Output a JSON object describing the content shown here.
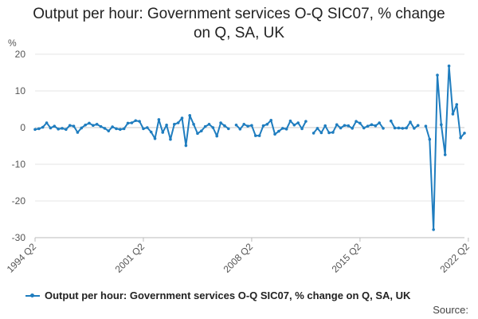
{
  "chart_data": {
    "type": "line",
    "title": "Output per hour: Government services O-Q SIC07, % change on Q, SA, UK",
    "ylabel": "%",
    "ylim": [
      -30,
      20
    ],
    "yticks": [
      20,
      10,
      0,
      -10,
      -20,
      -30
    ],
    "xlabels": [
      "1994 Q2",
      "2001 Q2",
      "2008 Q2",
      "2015 Q2",
      "2022 Q2"
    ],
    "start": "1994 Q2",
    "series": [
      {
        "name": "Output per hour: Government services O-Q SIC07, % change on Q, SA, UK",
        "color": "#1f7dbf",
        "values": [
          -0.5,
          -0.3,
          0.1,
          1.3,
          -0.1,
          0.4,
          -0.4,
          -0.2,
          -0.5,
          0.6,
          0.4,
          -1.3,
          -0.1,
          0.7,
          1.2,
          0.6,
          0.9,
          0.3,
          -0.2,
          -0.9,
          0.2,
          -0.3,
          -0.5,
          -0.3,
          1.2,
          1.3,
          1.9,
          1.7,
          -0.3,
          0.0,
          -1.2,
          -3.0,
          2.2,
          -1.3,
          0.7,
          -3.2,
          0.9,
          1.3,
          2.6,
          -4.9,
          3.3,
          0.9,
          -1.6,
          -0.9,
          0.3,
          0.9,
          0.0,
          -2.3,
          1.3,
          0.5,
          -0.3,
          null,
          0.7,
          -0.4,
          0.9,
          0.4,
          0.6,
          -2.2,
          -2.2,
          0.5,
          0.9,
          2.0,
          -1.8,
          -1.0,
          -0.2,
          -0.4,
          1.8,
          0.7,
          1.3,
          -0.3,
          1.7,
          null,
          -1.5,
          -0.2,
          -1.4,
          0.5,
          -1.4,
          -1.3,
          0.8,
          -0.1,
          0.6,
          0.5,
          -0.2,
          1.7,
          1.2,
          -0.1,
          0.4,
          0.8,
          0.5,
          1.3,
          -0.2,
          null,
          1.8,
          -0.1,
          -0.1,
          -0.2,
          -0.1,
          1.5,
          -0.2,
          0.6,
          null,
          0.4,
          -3.2,
          -27.8,
          14.3,
          0.8,
          -7.4,
          16.8,
          3.7,
          6.3,
          -2.8,
          -1.5
        ]
      }
    ],
    "legend": "Output per hour: Government services O-Q SIC07, % change on Q, SA, UK",
    "legend_position": "bottom",
    "source": "Source:",
    "grid": true
  }
}
